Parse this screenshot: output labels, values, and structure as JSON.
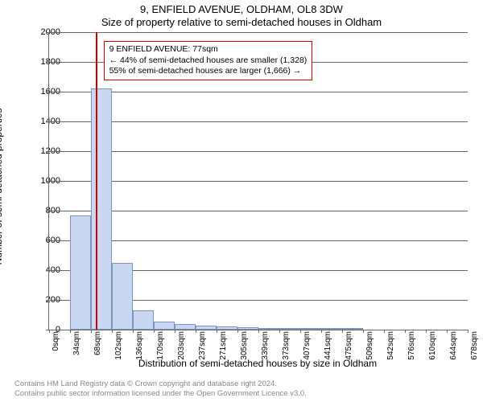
{
  "chart": {
    "type": "histogram",
    "title_main": "9, ENFIELD AVENUE, OLDHAM, OL8 3DW",
    "title_sub": "Size of property relative to semi-detached houses in Oldham",
    "title_fontsize": 13,
    "ylabel": "Number of semi-detached properties",
    "xlabel": "Distribution of semi-detached houses by size in Oldham",
    "label_fontsize": 12,
    "ylim": [
      0,
      2000
    ],
    "ytick_step": 200,
    "yticks": [
      0,
      200,
      400,
      600,
      800,
      1000,
      1200,
      1400,
      1600,
      1800,
      2000
    ],
    "xticks": [
      "0sqm",
      "34sqm",
      "68sqm",
      "102sqm",
      "136sqm",
      "170sqm",
      "203sqm",
      "237sqm",
      "271sqm",
      "305sqm",
      "339sqm",
      "373sqm",
      "407sqm",
      "441sqm",
      "475sqm",
      "509sqm",
      "542sqm",
      "576sqm",
      "610sqm",
      "644sqm",
      "678sqm"
    ],
    "background_color": "#ffffff",
    "grid_color": "#666666",
    "bar_fill": "#c9d8f0",
    "bar_border": "#7a95c4",
    "bar_values": [
      0,
      770,
      1620,
      450,
      130,
      55,
      40,
      25,
      20,
      15,
      8,
      5,
      3,
      2,
      1,
      0,
      0,
      0,
      0,
      0
    ],
    "marker_position_sqm": 77,
    "marker_color": "#cc0000",
    "info_box": {
      "line1": "9 ENFIELD AVENUE: 77sqm",
      "line2": "← 44% of semi-detached houses are smaller (1,328)",
      "line3": "55% of semi-detached houses are larger (1,666) →",
      "border_color": "#cc0000",
      "top_pct": 3,
      "left_pct": 13
    }
  },
  "footer": {
    "line1": "Contains HM Land Registry data © Crown copyright and database right 2024.",
    "line2": "Contains public sector information licensed under the Open Government Licence v3.0.",
    "color": "#888888"
  }
}
